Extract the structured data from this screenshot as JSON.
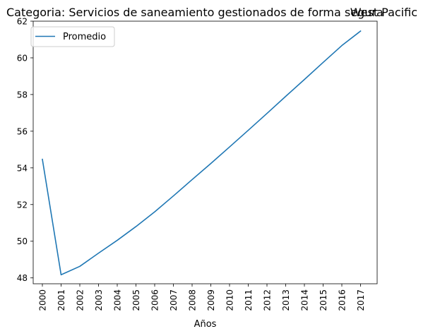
{
  "chart_data": {
    "type": "line",
    "title_left": "Categoria: Servicios de saneamiento gestionados de forma segura",
    "title_right": "West Pacific",
    "xlabel": "Años",
    "ylabel": "",
    "categories": [
      "2000",
      "2001",
      "2002",
      "2003",
      "2004",
      "2005",
      "2006",
      "2007",
      "2008",
      "2009",
      "2010",
      "2011",
      "2012",
      "2013",
      "2014",
      "2015",
      "2016",
      "2017"
    ],
    "series": [
      {
        "name": "Promedio",
        "color": "#1f77b4",
        "values": [
          54.47,
          48.17,
          48.63,
          49.35,
          50.05,
          50.8,
          51.6,
          52.47,
          53.36,
          54.24,
          55.14,
          56.05,
          56.97,
          57.9,
          58.82,
          59.75,
          60.67,
          61.46
        ]
      }
    ],
    "ylim": [
      47.68,
      62.0
    ],
    "yticks": [
      "48",
      "50",
      "52",
      "54",
      "56",
      "58",
      "60",
      "62"
    ],
    "legend_position": "upper-left",
    "grid": false
  }
}
